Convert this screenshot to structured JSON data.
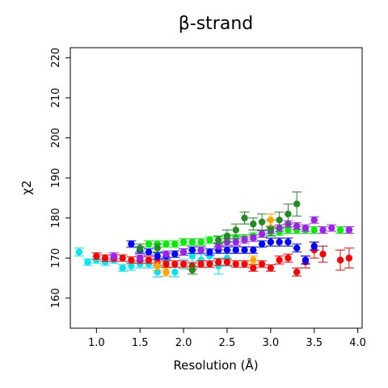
{
  "chart_data": {
    "type": "scatter",
    "title": "β-strand",
    "xlabel": "Resolution (Å)",
    "ylabel": "χ2",
    "xlim": [
      0.7,
      4.05
    ],
    "ylim": [
      152.5,
      222.5
    ],
    "xticks": [
      1.0,
      1.5,
      2.0,
      2.5,
      3.0,
      3.5,
      4.0
    ],
    "xtick_labels": [
      "1.0",
      "1.5",
      "2.0",
      "2.5",
      "3.0",
      "3.5",
      "4.0"
    ],
    "yticks": [
      160,
      170,
      180,
      190,
      200,
      210,
      220
    ],
    "ytick_labels": [
      "160",
      "170",
      "180",
      "190",
      "200",
      "210",
      "220"
    ],
    "grid": false,
    "legend": "none",
    "series": [
      {
        "color": "#00e5ee",
        "points": [
          {
            "x": 0.8,
            "y": 171.5,
            "err": 1.0
          },
          {
            "x": 0.9,
            "y": 169.0,
            "err": 0.8
          },
          {
            "x": 1.0,
            "y": 169.5,
            "err": 0.8
          },
          {
            "x": 1.1,
            "y": 169.0,
            "err": 0.8
          },
          {
            "x": 1.2,
            "y": 169.5,
            "err": 0.8
          },
          {
            "x": 1.3,
            "y": 167.5,
            "err": 0.8
          },
          {
            "x": 1.4,
            "y": 168.0,
            "err": 1.0
          },
          {
            "x": 1.5,
            "y": 168.5,
            "err": 1.0
          },
          {
            "x": 1.6,
            "y": 168.5,
            "err": 1.0
          },
          {
            "x": 1.7,
            "y": 166.5,
            "err": 1.2
          },
          {
            "x": 1.8,
            "y": 169.0,
            "err": 1.0
          },
          {
            "x": 1.9,
            "y": 166.5,
            "err": 1.2
          },
          {
            "x": 2.0,
            "y": 168.5,
            "err": 1.2
          },
          {
            "x": 2.1,
            "y": 170.5,
            "err": 1.5
          },
          {
            "x": 2.2,
            "y": 169.5,
            "err": 1.5
          },
          {
            "x": 2.3,
            "y": 170.5,
            "err": 1.5
          },
          {
            "x": 2.4,
            "y": 168.0,
            "err": 2.0
          },
          {
            "x": 2.5,
            "y": 170.0,
            "err": 2.0
          }
        ]
      },
      {
        "color": "#ff0000",
        "points": [
          {
            "x": 1.0,
            "y": 170.5,
            "err": 0.8
          },
          {
            "x": 1.1,
            "y": 170.0,
            "err": 0.8
          },
          {
            "x": 1.2,
            "y": 170.0,
            "err": 0.8
          },
          {
            "x": 1.3,
            "y": 170.0,
            "err": 0.8
          },
          {
            "x": 1.4,
            "y": 169.5,
            "err": 0.8
          },
          {
            "x": 1.5,
            "y": 169.5,
            "err": 0.8
          },
          {
            "x": 1.6,
            "y": 169.5,
            "err": 0.8
          },
          {
            "x": 1.7,
            "y": 169.0,
            "err": 0.8
          },
          {
            "x": 1.8,
            "y": 168.5,
            "err": 0.8
          },
          {
            "x": 1.9,
            "y": 168.5,
            "err": 0.8
          },
          {
            "x": 2.0,
            "y": 168.5,
            "err": 0.8
          },
          {
            "x": 2.1,
            "y": 168.0,
            "err": 0.8
          },
          {
            "x": 2.2,
            "y": 168.5,
            "err": 0.8
          },
          {
            "x": 2.3,
            "y": 168.5,
            "err": 0.8
          },
          {
            "x": 2.4,
            "y": 169.0,
            "err": 0.8
          },
          {
            "x": 2.5,
            "y": 169.0,
            "err": 0.8
          },
          {
            "x": 2.6,
            "y": 168.5,
            "err": 0.8
          },
          {
            "x": 2.7,
            "y": 168.5,
            "err": 0.8
          },
          {
            "x": 2.8,
            "y": 167.5,
            "err": 0.8
          },
          {
            "x": 2.9,
            "y": 168.5,
            "err": 0.8
          },
          {
            "x": 3.0,
            "y": 167.5,
            "err": 0.8
          },
          {
            "x": 3.1,
            "y": 169.5,
            "err": 1.0
          },
          {
            "x": 3.2,
            "y": 170.0,
            "err": 1.0
          },
          {
            "x": 3.3,
            "y": 166.5,
            "err": 1.0
          },
          {
            "x": 3.4,
            "y": 169.0,
            "err": 1.5
          },
          {
            "x": 3.5,
            "y": 172.0,
            "err": 2.0
          },
          {
            "x": 3.6,
            "y": 171.0,
            "err": 2.0
          },
          {
            "x": 3.8,
            "y": 169.5,
            "err": 2.5
          },
          {
            "x": 3.9,
            "y": 170.0,
            "err": 2.5
          }
        ]
      },
      {
        "color": "#0000ff",
        "points": [
          {
            "x": 1.4,
            "y": 173.5,
            "err": 0.8
          },
          {
            "x": 1.5,
            "y": 172.0,
            "err": 0.8
          },
          {
            "x": 1.6,
            "y": 171.5,
            "err": 0.8
          },
          {
            "x": 1.7,
            "y": 170.5,
            "err": 0.8
          },
          {
            "x": 1.8,
            "y": 170.5,
            "err": 0.8
          },
          {
            "x": 1.9,
            "y": 171.0,
            "err": 0.8
          },
          {
            "x": 2.0,
            "y": 171.5,
            "err": 0.8
          },
          {
            "x": 2.1,
            "y": 172.0,
            "err": 0.8
          },
          {
            "x": 2.2,
            "y": 172.0,
            "err": 0.8
          },
          {
            "x": 2.3,
            "y": 171.5,
            "err": 0.8
          },
          {
            "x": 2.4,
            "y": 172.0,
            "err": 0.8
          },
          {
            "x": 2.5,
            "y": 172.0,
            "err": 0.8
          },
          {
            "x": 2.6,
            "y": 172.0,
            "err": 0.8
          },
          {
            "x": 2.7,
            "y": 172.0,
            "err": 0.8
          },
          {
            "x": 2.8,
            "y": 172.0,
            "err": 0.8
          },
          {
            "x": 2.9,
            "y": 173.5,
            "err": 0.8
          },
          {
            "x": 3.0,
            "y": 174.0,
            "err": 1.0
          },
          {
            "x": 3.1,
            "y": 174.0,
            "err": 1.0
          },
          {
            "x": 3.2,
            "y": 174.0,
            "err": 1.0
          },
          {
            "x": 3.3,
            "y": 172.5,
            "err": 1.0
          },
          {
            "x": 3.4,
            "y": 169.5,
            "err": 1.0
          },
          {
            "x": 3.5,
            "y": 173.0,
            "err": 1.0
          }
        ]
      },
      {
        "color": "#00ee00",
        "points": [
          {
            "x": 1.6,
            "y": 173.5,
            "err": 0.8
          },
          {
            "x": 1.7,
            "y": 173.5,
            "err": 0.8
          },
          {
            "x": 1.8,
            "y": 173.5,
            "err": 0.8
          },
          {
            "x": 1.9,
            "y": 173.5,
            "err": 0.8
          },
          {
            "x": 2.0,
            "y": 174.0,
            "err": 0.8
          },
          {
            "x": 2.1,
            "y": 174.0,
            "err": 0.8
          },
          {
            "x": 2.2,
            "y": 174.0,
            "err": 0.8
          },
          {
            "x": 2.3,
            "y": 174.5,
            "err": 0.8
          },
          {
            "x": 2.4,
            "y": 174.5,
            "err": 0.8
          },
          {
            "x": 2.5,
            "y": 175.0,
            "err": 0.8
          },
          {
            "x": 2.6,
            "y": 175.0,
            "err": 0.8
          },
          {
            "x": 2.7,
            "y": 175.0,
            "err": 0.8
          },
          {
            "x": 2.8,
            "y": 175.5,
            "err": 0.8
          },
          {
            "x": 2.9,
            "y": 176.0,
            "err": 0.8
          },
          {
            "x": 3.0,
            "y": 176.5,
            "err": 0.8
          },
          {
            "x": 3.1,
            "y": 176.5,
            "err": 0.8
          },
          {
            "x": 3.2,
            "y": 177.0,
            "err": 0.8
          },
          {
            "x": 3.3,
            "y": 177.0,
            "err": 0.8
          },
          {
            "x": 3.4,
            "y": 177.0,
            "err": 0.8
          },
          {
            "x": 3.5,
            "y": 177.0,
            "err": 0.8
          },
          {
            "x": 3.6,
            "y": 177.0,
            "err": 0.8
          },
          {
            "x": 3.8,
            "y": 177.0,
            "err": 0.8
          },
          {
            "x": 3.9,
            "y": 177.0,
            "err": 0.8
          }
        ]
      },
      {
        "color": "#a020f0",
        "points": [
          {
            "x": 1.2,
            "y": 170.5,
            "err": 0.8
          },
          {
            "x": 1.5,
            "y": 170.0,
            "err": 0.8
          },
          {
            "x": 1.8,
            "y": 171.0,
            "err": 0.8
          },
          {
            "x": 2.0,
            "y": 171.5,
            "err": 0.8
          },
          {
            "x": 2.2,
            "y": 172.0,
            "err": 0.8
          },
          {
            "x": 2.4,
            "y": 173.0,
            "err": 0.8
          },
          {
            "x": 2.5,
            "y": 174.0,
            "err": 0.8
          },
          {
            "x": 2.6,
            "y": 174.0,
            "err": 0.8
          },
          {
            "x": 2.7,
            "y": 174.5,
            "err": 0.8
          },
          {
            "x": 2.8,
            "y": 175.0,
            "err": 0.8
          },
          {
            "x": 2.9,
            "y": 176.0,
            "err": 0.8
          },
          {
            "x": 3.0,
            "y": 177.0,
            "err": 0.8
          },
          {
            "x": 3.1,
            "y": 177.5,
            "err": 0.8
          },
          {
            "x": 3.2,
            "y": 178.5,
            "err": 0.8
          },
          {
            "x": 3.3,
            "y": 178.0,
            "err": 0.8
          },
          {
            "x": 3.4,
            "y": 177.5,
            "err": 0.8
          },
          {
            "x": 3.5,
            "y": 179.5,
            "err": 0.8
          },
          {
            "x": 3.6,
            "y": 177.0,
            "err": 0.8
          },
          {
            "x": 3.7,
            "y": 177.5,
            "err": 0.8
          },
          {
            "x": 3.9,
            "y": 177.0,
            "err": 0.8
          }
        ]
      },
      {
        "color": "#228b22",
        "points": [
          {
            "x": 1.5,
            "y": 172.5,
            "err": 1.0
          },
          {
            "x": 1.7,
            "y": 172.5,
            "err": 1.0
          },
          {
            "x": 2.1,
            "y": 167.0,
            "err": 1.0
          },
          {
            "x": 2.4,
            "y": 174.5,
            "err": 1.0
          },
          {
            "x": 2.5,
            "y": 175.5,
            "err": 1.5
          },
          {
            "x": 2.6,
            "y": 177.0,
            "err": 1.5
          },
          {
            "x": 2.7,
            "y": 180.0,
            "err": 1.5
          },
          {
            "x": 2.8,
            "y": 178.5,
            "err": 1.5
          },
          {
            "x": 2.9,
            "y": 179.0,
            "err": 2.0
          },
          {
            "x": 3.0,
            "y": 177.5,
            "err": 2.0
          },
          {
            "x": 3.1,
            "y": 179.5,
            "err": 2.0
          },
          {
            "x": 3.2,
            "y": 181.0,
            "err": 2.5
          },
          {
            "x": 3.3,
            "y": 183.5,
            "err": 3.0
          }
        ]
      },
      {
        "color": "#ffa500",
        "points": [
          {
            "x": 1.7,
            "y": 168.0,
            "err": 1.0
          },
          {
            "x": 1.8,
            "y": 166.5,
            "err": 1.0
          },
          {
            "x": 2.8,
            "y": 169.5,
            "err": 1.0
          },
          {
            "x": 3.0,
            "y": 179.5,
            "err": 1.5
          }
        ]
      }
    ]
  }
}
